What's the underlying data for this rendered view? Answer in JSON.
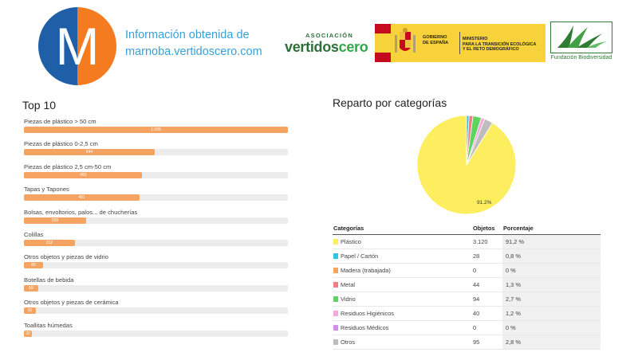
{
  "header": {
    "info_line1": "Información obtenida de",
    "info_line2": "marnoba.vertidoscero.com",
    "logo_letter": "M",
    "vc_top": "ASOCIACIÓN",
    "vc_word_main": "vertidos",
    "vc_word_accent": "cero",
    "gov_line1": "GOBIERNO",
    "gov_line2": "DE ESPAÑA",
    "ministry_line1": "MINISTERIO",
    "ministry_line2": "PARA LA TRANSICIÓN ECOLÓGICA",
    "ministry_line3": "Y EL RETO DEMOGRÁFICO",
    "fundacion": "Fundación Biodiversidad"
  },
  "top10": {
    "title": "Top 10",
    "items": [
      {
        "label": "Piezas de plástico > 50 cm",
        "value": "1.099"
      },
      {
        "label": "Piezas de plástico 0-2,5 cm",
        "value": "544"
      },
      {
        "label": "Piezas de plástico 2,5 cm-50 cm",
        "value": "493"
      },
      {
        "label": "Tapas y Tapones",
        "value": "481"
      },
      {
        "label": "Bolsas, envoltorios, palos... de chucherías",
        "value": "258"
      },
      {
        "label": "Colillas",
        "value": "212"
      },
      {
        "label": "Otros objetos y piezas de vidrio",
        "value": "80"
      },
      {
        "label": "Botellas de bebida",
        "value": "59"
      },
      {
        "label": "Otros objetos y piezas de cerámica",
        "value": "50"
      },
      {
        "label": "Toallitas húmedas",
        "value": "32"
      }
    ]
  },
  "chart_data": [
    {
      "type": "bar",
      "orientation": "horizontal",
      "title": "Top 10",
      "categories": [
        "Piezas de plástico > 50 cm",
        "Piezas de plástico 0-2,5 cm",
        "Piezas de plástico 2,5 cm-50 cm",
        "Tapas y Tapones",
        "Bolsas, envoltorios, palos... de chucherías",
        "Colillas",
        "Otros objetos y piezas de vidrio",
        "Botellas de bebida",
        "Otros objetos y piezas de cerámica",
        "Toallitas húmedas"
      ],
      "values": [
        1099,
        544,
        493,
        481,
        258,
        212,
        80,
        59,
        50,
        32
      ],
      "xlim": [
        0,
        1099
      ],
      "bar_color": "#f4a460",
      "track_color": "#ececec"
    },
    {
      "type": "pie",
      "title": "Reparto por categorías",
      "labels": [
        "Plástico",
        "Papel / Cartón",
        "Madera (trabajada)",
        "Metal",
        "Vidrio",
        "Residuos Higiénicos",
        "Residuos Médicos",
        "Otros"
      ],
      "values": [
        3120,
        28,
        0,
        44,
        94,
        40,
        0,
        95
      ],
      "percent": [
        91.2,
        0.8,
        0,
        1.3,
        2.7,
        1.2,
        0,
        2.8
      ],
      "colors": [
        "#fcee5e",
        "#2ec4e8",
        "#f4a460",
        "#f08080",
        "#5fd35f",
        "#f7a8d8",
        "#d58cf0",
        "#bdbdbd"
      ],
      "slice_label": "91.2%"
    }
  ],
  "pie": {
    "title": "Reparto por categorías"
  },
  "table": {
    "headers": [
      "Categorías",
      "Objetos",
      "Porcentaje"
    ],
    "rows": [
      {
        "name": "Plástico",
        "count": "3.120",
        "pct": "91,2 %",
        "color": "#fcee5e"
      },
      {
        "name": "Papel / Cartón",
        "count": "28",
        "pct": "0,8 %",
        "color": "#2ec4e8"
      },
      {
        "name": "Madera (trabajada)",
        "count": "0",
        "pct": "0 %",
        "color": "#f4a460"
      },
      {
        "name": "Metal",
        "count": "44",
        "pct": "1,3 %",
        "color": "#f08080"
      },
      {
        "name": "Vidrio",
        "count": "94",
        "pct": "2,7 %",
        "color": "#5fd35f"
      },
      {
        "name": "Residuos Higiénicos",
        "count": "40",
        "pct": "1,2 %",
        "color": "#f7a8d8"
      },
      {
        "name": "Residuos Médicos",
        "count": "0",
        "pct": "0 %",
        "color": "#d58cf0"
      },
      {
        "name": "Otros",
        "count": "95",
        "pct": "2,8 %",
        "color": "#bdbdbd"
      }
    ]
  },
  "colors": {
    "logo_blue": "#1f5fa8",
    "logo_orange": "#f47b20",
    "link_blue": "#3aa0d8",
    "vc_green": "#2f6f3a",
    "gov_yellow": "#f8d23a",
    "spain_red": "#c60b1e",
    "fb_green": "#2e7d32"
  }
}
